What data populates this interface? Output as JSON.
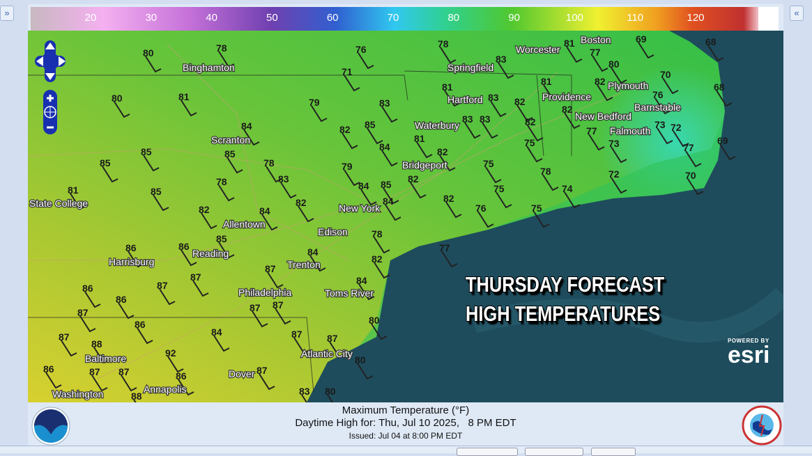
{
  "ui": {
    "expand_left": "»",
    "expand_right": "«"
  },
  "colorbar": {
    "ticks": [
      "20",
      "30",
      "40",
      "50",
      "60",
      "70",
      "80",
      "90",
      "100",
      "110",
      "120"
    ]
  },
  "map": {
    "overlay_title_line1": "THURSDAY FORECAST",
    "overlay_title_line2": "HIGH TEMPERATURES",
    "esri_powered": "POWERED BY",
    "esri_logo": "esri",
    "cities": [
      "Binghamton",
      "Worcester",
      "Boston",
      "Springfield",
      "Hartford",
      "Providence",
      "Plymouth",
      "New Bedford",
      "Barnstable",
      "Falmouth",
      "Waterbury",
      "Bridgeport",
      "Scranton",
      "State College",
      "New York",
      "Allentown",
      "Edison",
      "Reading",
      "Harrisburg",
      "Trenton",
      "Philadelphia",
      "Toms River",
      "Baltimore",
      "Atlantic City",
      "Dover",
      "Annapolis",
      "Washington"
    ],
    "station_temps_f": [
      80,
      78,
      76,
      78,
      83,
      81,
      77,
      69,
      68,
      80,
      81,
      71,
      79,
      83,
      81,
      83,
      82,
      81,
      82,
      80,
      70,
      76,
      68,
      82,
      85,
      85,
      84,
      85,
      82,
      85,
      84,
      81,
      82,
      83,
      83,
      82,
      75,
      77,
      73,
      73,
      72,
      77,
      69,
      78,
      83,
      79,
      84,
      85,
      84,
      82,
      75,
      78,
      74,
      72,
      70,
      81,
      85,
      78,
      82,
      84,
      82,
      82,
      75,
      76,
      75,
      78,
      86,
      86,
      85,
      84,
      82,
      77,
      87,
      87,
      87,
      86,
      86,
      87,
      84,
      87,
      87,
      86,
      80,
      84,
      87,
      87,
      92,
      88,
      87,
      87,
      87,
      86,
      87,
      80,
      86,
      88,
      83,
      80
    ],
    "land_color": "#5cc43c",
    "ocean_color": "#1e4c5c"
  },
  "caption": {
    "title": "Maximum Temperature (°F)",
    "valid": "Daytime High for: Thu, Jul 10 2025,   8 PM EDT",
    "issued": "Issued: Jul 04 at 8:00 PM EDT",
    "noaa_logo": "NOAA",
    "nws_logo": "NATIONAL WEATHER SERVICE"
  }
}
